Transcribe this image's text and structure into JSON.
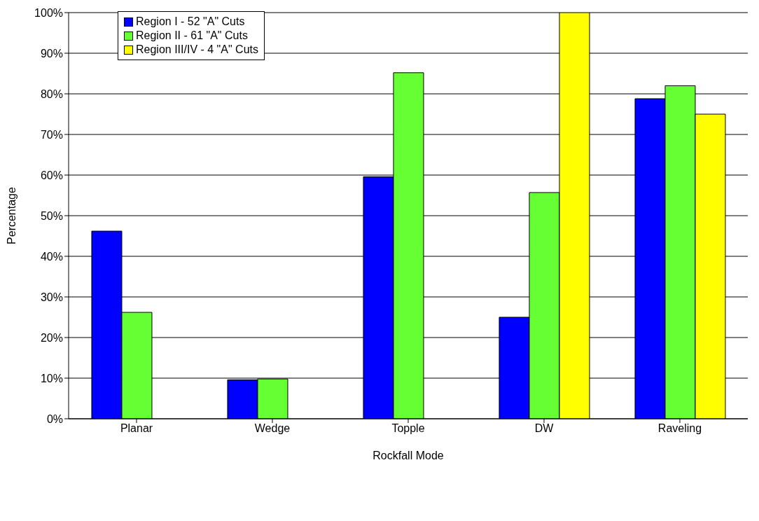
{
  "chart_data": {
    "type": "bar",
    "xlabel": "Rockfall Mode",
    "ylabel": "Percentage",
    "categories": [
      "Planar",
      "Wedge",
      "Topple",
      "DW",
      "Raveling"
    ],
    "series": [
      {
        "name": "Region I - 52 \"A\" Cuts",
        "color": "#0000ff",
        "values": [
          46.2,
          9.6,
          59.6,
          25.0,
          78.8
        ]
      },
      {
        "name": "Region II - 61 \"A\" Cuts",
        "color": "#66ff33",
        "values": [
          26.2,
          9.8,
          85.2,
          55.7,
          82.0
        ]
      },
      {
        "name": "Region III/IV - 4 \"A\" Cuts",
        "color": "#ffff00",
        "values": [
          0,
          0,
          0,
          100,
          75.0
        ]
      }
    ],
    "ylim": [
      0,
      100
    ],
    "yticks": [
      {
        "value": 0,
        "label": "0%"
      },
      {
        "value": 10,
        "label": "10%"
      },
      {
        "value": 20,
        "label": "20%"
      },
      {
        "value": 30,
        "label": "30%"
      },
      {
        "value": 40,
        "label": "40%"
      },
      {
        "value": 50,
        "label": "50%"
      },
      {
        "value": 60,
        "label": "60%"
      },
      {
        "value": 70,
        "label": "70%"
      },
      {
        "value": 80,
        "label": "80%"
      },
      {
        "value": 90,
        "label": "90%"
      },
      {
        "value": 100,
        "label": "100%"
      }
    ],
    "grid": "y",
    "legend": "top left"
  }
}
